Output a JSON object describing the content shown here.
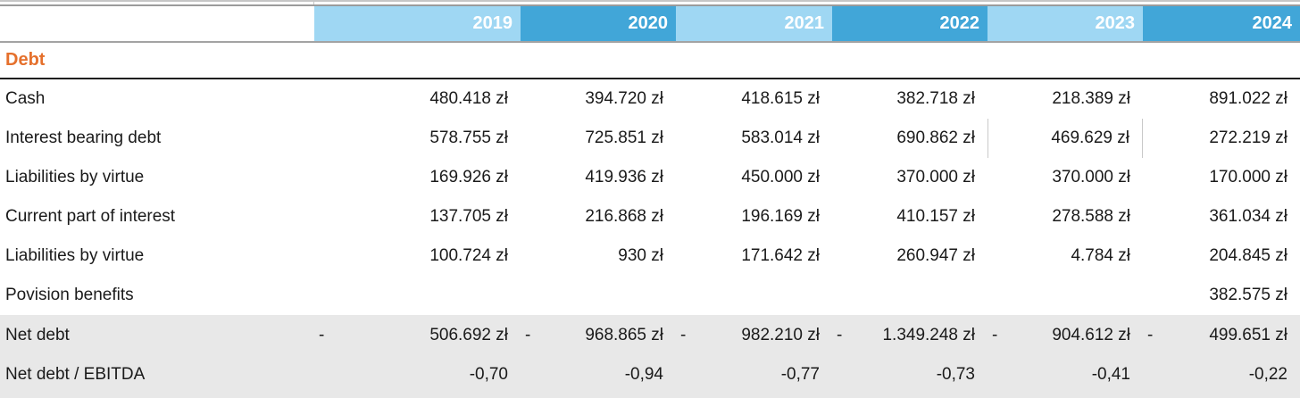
{
  "minus_sign": "-",
  "currency": "zł",
  "header": {
    "years": [
      "2019",
      "2020",
      "2021",
      "2022",
      "2023",
      "2024"
    ]
  },
  "section": {
    "title": "Debt"
  },
  "rows": [
    {
      "label": "Cash",
      "values": [
        "480.418 zł",
        "394.720 zł",
        "418.615 zł",
        "382.718 zł",
        "218.389 zł",
        "891.022 zł"
      ]
    },
    {
      "label": "Interest bearing debt",
      "values": [
        "578.755 zł",
        "725.851 zł",
        "583.014 zł",
        "690.862 zł",
        "469.629 zł",
        "272.219 zł"
      ]
    },
    {
      "label": "Liabilities by virtue",
      "values": [
        "169.926 zł",
        "419.936 zł",
        "450.000 zł",
        "370.000 zł",
        "370.000 zł",
        "170.000 zł"
      ]
    },
    {
      "label": "Current part of interest",
      "values": [
        "137.705 zł",
        "216.868 zł",
        "196.169 zł",
        "410.157 zł",
        "278.588 zł",
        "361.034 zł"
      ]
    },
    {
      "label": "Liabilities by virtue",
      "values": [
        "100.724 zł",
        "930 zł",
        "171.642 zł",
        "260.947 zł",
        "4.784 zł",
        "204.845 zł"
      ]
    },
    {
      "label": "Povision benefits",
      "values": [
        "",
        "",
        "",
        "",
        "",
        "382.575 zł"
      ]
    },
    {
      "label": "Net debt",
      "shaded": true,
      "accounting_negative": true,
      "values": [
        "506.692 zł",
        "968.865 zł",
        "982.210 zł",
        "1.349.248 zł",
        "904.612 zł",
        "499.651 zł"
      ]
    },
    {
      "label": "Net debt / EBITDA",
      "shaded": true,
      "values": [
        "-0,70",
        "-0,94",
        "-0,77",
        "-0,73",
        "-0,41",
        "-0,22"
      ]
    }
  ],
  "colors": {
    "header_light_blue": "#9FD7F3",
    "header_dark_blue": "#41A6D8",
    "section_orange": "#E5702C",
    "shaded_row_gray": "#E8E8E8",
    "text_black": "#1A1A1A"
  }
}
